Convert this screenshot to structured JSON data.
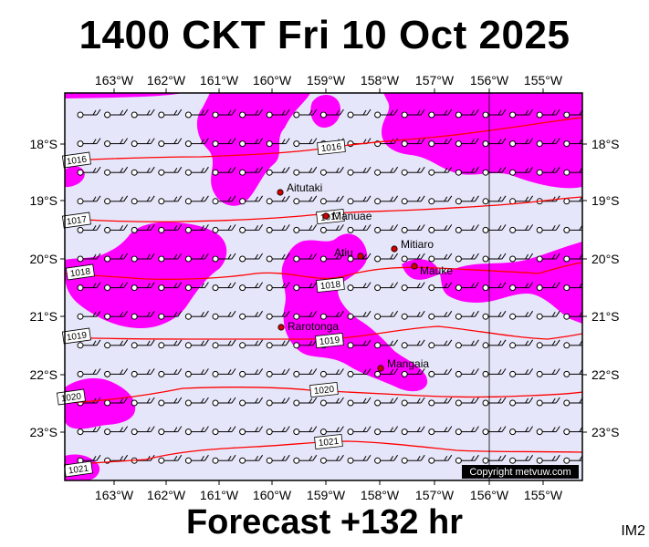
{
  "title": "1400 CKT Fri 10 Oct 2025",
  "footer": "Forecast +132 hr",
  "product_code": "IM2",
  "copyright": "Copyright metvuw.com",
  "colors": {
    "background": "#e6e6fa",
    "precip": "#ff00ff",
    "isobar": "#ff0000",
    "wind": "#000000",
    "town": "#d00000"
  },
  "lon_labels": [
    "163°W",
    "162°W",
    "161°W",
    "160°W",
    "159°W",
    "158°W",
    "157°W",
    "156°W",
    "155°W"
  ],
  "lat_labels": [
    "18°S",
    "19°S",
    "20°S",
    "21°S",
    "22°S",
    "23°S"
  ],
  "towns": [
    {
      "name": "Aitutaki"
    },
    {
      "name": "Manuae"
    },
    {
      "name": "Atiu"
    },
    {
      "name": "Mitiaro"
    },
    {
      "name": "Mauke"
    },
    {
      "name": "Rarotonga"
    },
    {
      "name": "Mangaia"
    }
  ],
  "isobars": [
    {
      "label": "1016"
    },
    {
      "label": "1017"
    },
    {
      "label": "1018"
    },
    {
      "label": "1019"
    },
    {
      "label": "1020"
    },
    {
      "label": "1021"
    }
  ],
  "isobar_inline_labels": [
    "1016",
    "1017",
    "1018",
    "1019",
    "1020",
    "1021"
  ]
}
